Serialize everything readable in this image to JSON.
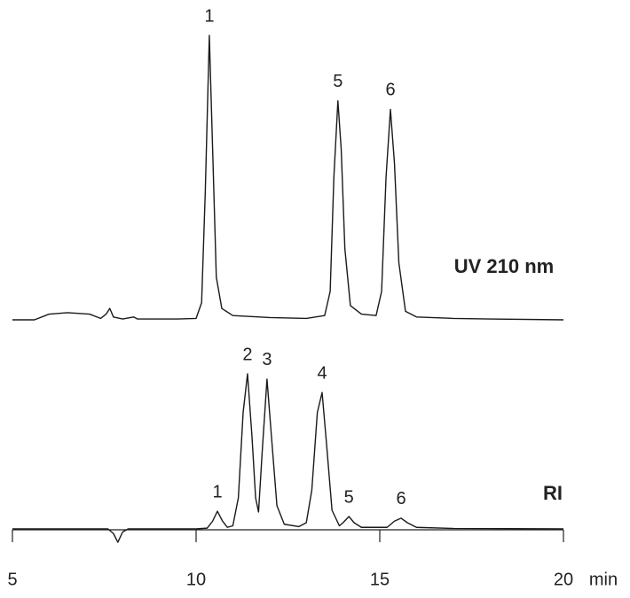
{
  "chart_data": {
    "type": "line",
    "xlabel": "min",
    "xlim": [
      5,
      20
    ],
    "xticks": [
      5,
      10,
      15,
      20
    ],
    "series": [
      {
        "name": "UV 210 nm",
        "color": "#1a1a1a",
        "ylim": [
          0,
          100
        ],
        "x": [
          5.0,
          5.6,
          6.0,
          6.5,
          7.1,
          7.4,
          7.55,
          7.65,
          7.75,
          8.0,
          8.3,
          8.4,
          9.5,
          10.0,
          10.15,
          10.25,
          10.36,
          10.45,
          10.55,
          10.7,
          11.0,
          12.0,
          13.0,
          13.5,
          13.65,
          13.75,
          13.86,
          13.95,
          14.05,
          14.2,
          14.5,
          14.9,
          15.05,
          15.17,
          15.29,
          15.4,
          15.52,
          15.7,
          16.0,
          17.0,
          18.0,
          20.0
        ],
        "values": [
          0,
          0,
          2,
          2.5,
          2,
          0.5,
          2,
          4,
          1,
          0.3,
          1,
          0.3,
          0.3,
          0.5,
          6,
          45,
          100,
          60,
          15,
          4,
          1.5,
          0.8,
          0.5,
          1.5,
          10,
          50,
          77,
          60,
          25,
          5,
          2,
          1.5,
          10,
          50,
          74,
          55,
          20,
          3,
          1,
          0.5,
          0.3,
          0
        ],
        "annotations": [
          {
            "text": "1",
            "x": 10.36,
            "y": 100
          },
          {
            "text": "5",
            "x": 13.86,
            "y": 77
          },
          {
            "text": "6",
            "x": 15.29,
            "y": 74
          }
        ]
      },
      {
        "name": "RI",
        "color": "#1a1a1a",
        "ylim": [
          0,
          100
        ],
        "x": [
          5.0,
          7.6,
          7.75,
          7.87,
          8.0,
          8.15,
          10.0,
          10.3,
          10.45,
          10.58,
          10.72,
          10.85,
          11.0,
          11.15,
          11.28,
          11.4,
          11.52,
          11.62,
          11.7,
          11.8,
          11.93,
          12.05,
          12.2,
          12.4,
          12.8,
          13.0,
          13.15,
          13.3,
          13.43,
          13.55,
          13.7,
          13.9,
          14.0,
          14.16,
          14.3,
          14.5,
          15.2,
          15.4,
          15.58,
          15.75,
          16.0,
          17.0,
          20.0
        ],
        "values": [
          0,
          0,
          -3,
          -8.6,
          -2,
          0,
          0,
          0.5,
          5,
          11.4,
          5,
          1,
          2,
          20,
          75,
          100,
          60,
          20,
          10.9,
          50,
          96.6,
          60,
          15,
          3,
          1.5,
          4,
          25,
          75,
          88,
          55,
          12,
          2,
          4,
          8,
          4,
          1,
          1,
          5,
          6.9,
          4,
          1,
          0.3,
          0
        ],
        "annotations": [
          {
            "text": "1",
            "x": 10.58,
            "y": 11.4
          },
          {
            "text": "2",
            "x": 11.4,
            "y": 100
          },
          {
            "text": "3",
            "x": 11.93,
            "y": 96.6
          },
          {
            "text": "4",
            "x": 13.43,
            "y": 88
          },
          {
            "text": "5",
            "x": 14.16,
            "y": 8
          },
          {
            "text": "6",
            "x": 15.58,
            "y": 6.9
          }
        ]
      }
    ]
  }
}
